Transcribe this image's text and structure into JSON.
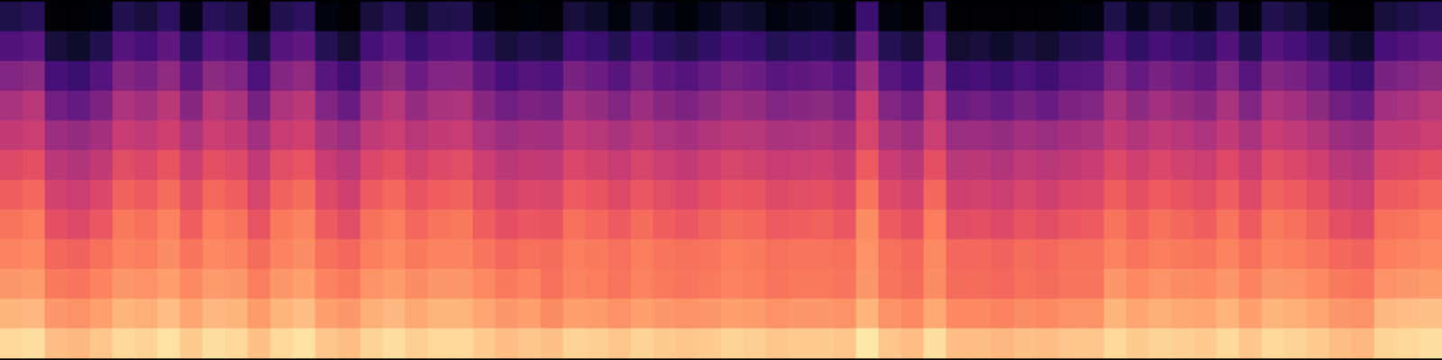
{
  "chart_data": {
    "type": "heatmap",
    "color": "magma",
    "zlim": [
      0,
      100
    ],
    "tick_labels": false,
    "cells": [
      [
        13,
        16,
        1,
        1,
        2,
        14,
        11,
        17,
        5,
        16,
        13,
        1,
        14,
        17,
        3,
        1,
        11,
        16,
        8,
        13,
        14,
        5,
        1,
        2,
        1,
        11,
        8,
        3,
        10,
        5,
        2,
        6,
        10,
        8,
        3,
        5,
        6,
        2,
        20,
        3,
        1,
        16,
        1,
        1,
        1,
        1,
        1,
        2,
        3,
        13,
        6,
        11,
        8,
        5,
        13,
        3,
        14,
        11,
        6,
        1,
        1,
        11,
        13,
        16
      ],
      [
        25,
        28,
        11,
        8,
        14,
        26,
        23,
        29,
        17,
        28,
        25,
        12,
        26,
        29,
        15,
        9,
        23,
        28,
        20,
        25,
        26,
        17,
        11,
        14,
        12,
        23,
        20,
        15,
        22,
        17,
        14,
        18,
        22,
        20,
        15,
        17,
        18,
        14,
        32,
        15,
        11,
        28,
        9,
        11,
        8,
        12,
        9,
        14,
        15,
        25,
        18,
        23,
        20,
        17,
        25,
        15,
        26,
        23,
        18,
        11,
        8,
        23,
        25,
        28
      ],
      [
        37,
        40,
        23,
        20,
        26,
        38,
        35,
        41,
        29,
        40,
        37,
        24,
        38,
        41,
        27,
        21,
        35,
        40,
        32,
        37,
        38,
        29,
        23,
        26,
        24,
        35,
        32,
        27,
        34,
        29,
        26,
        30,
        34,
        32,
        27,
        29,
        30,
        26,
        44,
        27,
        23,
        40,
        21,
        23,
        20,
        24,
        21,
        26,
        27,
        37,
        30,
        35,
        32,
        29,
        37,
        27,
        38,
        35,
        30,
        23,
        20,
        35,
        37,
        40
      ],
      [
        47,
        50,
        33,
        30,
        36,
        48,
        45,
        51,
        39,
        50,
        47,
        34,
        48,
        51,
        37,
        31,
        45,
        50,
        42,
        47,
        48,
        39,
        33,
        36,
        34,
        45,
        42,
        37,
        44,
        39,
        36,
        40,
        44,
        42,
        37,
        39,
        40,
        36,
        54,
        37,
        33,
        50,
        31,
        33,
        30,
        34,
        31,
        36,
        37,
        47,
        40,
        45,
        42,
        39,
        47,
        37,
        48,
        45,
        40,
        33,
        30,
        45,
        47,
        50
      ],
      [
        53,
        55,
        44,
        42,
        46,
        54,
        52,
        56,
        48,
        55,
        53,
        45,
        54,
        56,
        47,
        43,
        52,
        55,
        50,
        53,
        54,
        48,
        44,
        46,
        45,
        52,
        50,
        47,
        51,
        48,
        46,
        49,
        51,
        50,
        47,
        48,
        49,
        46,
        58,
        47,
        44,
        55,
        43,
        44,
        42,
        45,
        43,
        46,
        47,
        53,
        49,
        52,
        50,
        48,
        53,
        47,
        54,
        52,
        49,
        44,
        42,
        52,
        53,
        55
      ],
      [
        60,
        62,
        51,
        49,
        53,
        61,
        59,
        63,
        55,
        62,
        60,
        52,
        61,
        63,
        54,
        50,
        59,
        62,
        57,
        60,
        61,
        55,
        51,
        53,
        52,
        59,
        57,
        54,
        58,
        55,
        53,
        56,
        58,
        57,
        54,
        55,
        56,
        53,
        65,
        54,
        51,
        62,
        50,
        51,
        49,
        52,
        50,
        53,
        54,
        60,
        56,
        59,
        57,
        55,
        60,
        54,
        61,
        59,
        56,
        51,
        49,
        59,
        60,
        62
      ],
      [
        66,
        68,
        57,
        55,
        59,
        67,
        65,
        69,
        61,
        68,
        66,
        58,
        67,
        69,
        60,
        56,
        65,
        68,
        63,
        66,
        67,
        61,
        57,
        59,
        58,
        65,
        63,
        60,
        64,
        61,
        59,
        62,
        64,
        63,
        60,
        61,
        62,
        59,
        71,
        60,
        57,
        68,
        56,
        57,
        55,
        58,
        56,
        59,
        60,
        66,
        62,
        65,
        63,
        61,
        66,
        60,
        67,
        65,
        62,
        57,
        55,
        65,
        66,
        68
      ],
      [
        71,
        73,
        62,
        60,
        64,
        72,
        70,
        74,
        66,
        73,
        71,
        63,
        72,
        74,
        65,
        61,
        70,
        73,
        68,
        71,
        72,
        66,
        62,
        64,
        63,
        70,
        68,
        65,
        69,
        66,
        64,
        67,
        69,
        68,
        65,
        66,
        67,
        64,
        76,
        65,
        62,
        73,
        61,
        62,
        60,
        63,
        61,
        64,
        65,
        71,
        67,
        70,
        68,
        66,
        71,
        65,
        72,
        70,
        67,
        62,
        60,
        70,
        71,
        73
      ],
      [
        74,
        75,
        68,
        67,
        70,
        74,
        73,
        76,
        71,
        75,
        74,
        69,
        74,
        76,
        70,
        68,
        73,
        75,
        72,
        74,
        74,
        71,
        68,
        70,
        69,
        73,
        72,
        70,
        73,
        71,
        70,
        71,
        73,
        72,
        70,
        71,
        71,
        70,
        77,
        70,
        68,
        75,
        68,
        68,
        67,
        69,
        68,
        70,
        70,
        74,
        71,
        73,
        72,
        71,
        74,
        70,
        74,
        73,
        71,
        68,
        67,
        73,
        74,
        75
      ],
      [
        78,
        79,
        72,
        71,
        74,
        78,
        77,
        80,
        75,
        79,
        78,
        73,
        78,
        80,
        74,
        72,
        77,
        79,
        76,
        78,
        78,
        75,
        72,
        74,
        70,
        74,
        73,
        71,
        74,
        72,
        71,
        72,
        74,
        73,
        71,
        72,
        72,
        71,
        78,
        71,
        69,
        76,
        69,
        69,
        68,
        70,
        69,
        71,
        71,
        78,
        75,
        77,
        76,
        75,
        78,
        74,
        78,
        77,
        75,
        72,
        71,
        77,
        78,
        79
      ],
      [
        84,
        85,
        78,
        77,
        80,
        84,
        83,
        86,
        81,
        85,
        84,
        79,
        84,
        86,
        80,
        78,
        83,
        85,
        82,
        84,
        84,
        81,
        78,
        80,
        76,
        80,
        79,
        77,
        80,
        78,
        77,
        78,
        80,
        79,
        77,
        78,
        78,
        77,
        84,
        77,
        75,
        82,
        75,
        75,
        74,
        76,
        75,
        77,
        77,
        84,
        81,
        83,
        82,
        81,
        84,
        80,
        84,
        83,
        81,
        78,
        77,
        85,
        86,
        87
      ],
      [
        92,
        93,
        86,
        85,
        88,
        92,
        91,
        94,
        89,
        93,
        92,
        87,
        92,
        94,
        88,
        86,
        91,
        93,
        90,
        92,
        92,
        89,
        86,
        88,
        87,
        91,
        90,
        88,
        91,
        89,
        88,
        89,
        91,
        90,
        88,
        89,
        89,
        88,
        95,
        88,
        86,
        93,
        86,
        86,
        85,
        87,
        86,
        88,
        88,
        92,
        89,
        91,
        90,
        89,
        92,
        88,
        92,
        91,
        89,
        86,
        85,
        91,
        92,
        93
      ]
    ]
  }
}
